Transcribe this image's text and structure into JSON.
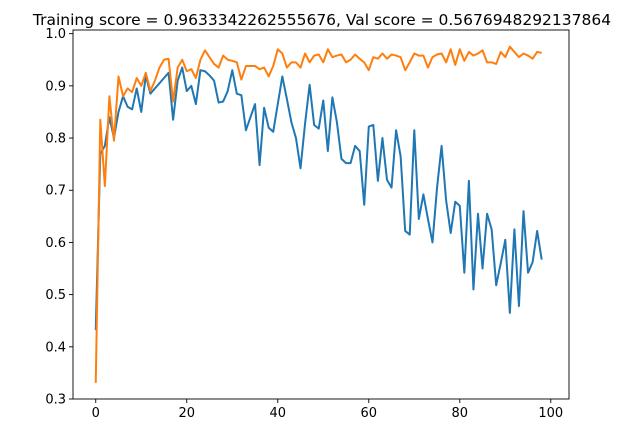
{
  "chart_data": {
    "type": "line",
    "title": "Training score = 0.9633342262555676, Val score = 0.5676948292137864",
    "xlabel": "",
    "ylabel": "",
    "xlim": [
      -5,
      104
    ],
    "ylim": [
      0.3,
      1.007
    ],
    "x_ticks": [
      0,
      20,
      40,
      60,
      80,
      100
    ],
    "y_ticks": [
      0.3,
      0.4,
      0.5,
      0.6,
      0.7,
      0.8,
      0.9,
      1.0
    ],
    "grid": false,
    "x": [
      0,
      1,
      2,
      3,
      4,
      5,
      6,
      7,
      8,
      9,
      10,
      11,
      12,
      13,
      14,
      15,
      16,
      17,
      18,
      19,
      20,
      21,
      22,
      23,
      24,
      25,
      26,
      27,
      28,
      29,
      30,
      31,
      32,
      33,
      34,
      35,
      36,
      37,
      38,
      39,
      40,
      41,
      42,
      43,
      44,
      45,
      46,
      47,
      48,
      49,
      50,
      51,
      52,
      53,
      54,
      55,
      56,
      57,
      58,
      59,
      60,
      61,
      62,
      63,
      64,
      65,
      66,
      67,
      68,
      69,
      70,
      71,
      72,
      73,
      74,
      75,
      76,
      77,
      78,
      79,
      80,
      81,
      82,
      83,
      84,
      85,
      86,
      87,
      88,
      89,
      90,
      91,
      92,
      93,
      94,
      95,
      96,
      97,
      98
    ],
    "series": [
      {
        "color": "#1f77b4",
        "values": [
          0.432,
          0.77,
          0.785,
          0.84,
          0.8,
          0.85,
          0.88,
          0.86,
          0.855,
          0.895,
          0.85,
          0.92,
          0.885,
          0.895,
          0.905,
          0.915,
          0.925,
          0.835,
          0.91,
          0.935,
          0.89,
          0.9,
          0.865,
          0.93,
          0.928,
          0.92,
          0.91,
          0.868,
          0.87,
          0.89,
          0.93,
          0.885,
          0.882,
          0.815,
          0.84,
          0.865,
          0.748,
          0.858,
          0.82,
          0.812,
          0.865,
          0.918,
          0.875,
          0.83,
          0.8,
          0.742,
          0.828,
          0.902,
          0.825,
          0.818,
          0.872,
          0.775,
          0.878,
          0.83,
          0.76,
          0.752,
          0.752,
          0.785,
          0.775,
          0.672,
          0.822,
          0.825,
          0.718,
          0.8,
          0.72,
          0.705,
          0.815,
          0.765,
          0.622,
          0.615,
          0.815,
          0.645,
          0.692,
          0.645,
          0.6,
          0.705,
          0.785,
          0.68,
          0.618,
          0.678,
          0.67,
          0.542,
          0.718,
          0.51,
          0.655,
          0.55,
          0.655,
          0.625,
          0.518,
          0.56,
          0.605,
          0.465,
          0.625,
          0.478,
          0.66,
          0.542,
          0.562,
          0.622,
          0.567
        ]
      },
      {
        "color": "#ff7f0e",
        "values": [
          0.331,
          0.835,
          0.708,
          0.88,
          0.795,
          0.918,
          0.88,
          0.895,
          0.888,
          0.915,
          0.9,
          0.925,
          0.89,
          0.91,
          0.935,
          0.95,
          0.952,
          0.87,
          0.935,
          0.95,
          0.928,
          0.932,
          0.915,
          0.95,
          0.968,
          0.955,
          0.942,
          0.935,
          0.958,
          0.95,
          0.948,
          0.945,
          0.912,
          0.938,
          0.938,
          0.938,
          0.932,
          0.935,
          0.918,
          0.938,
          0.97,
          0.962,
          0.935,
          0.945,
          0.945,
          0.935,
          0.962,
          0.945,
          0.958,
          0.96,
          0.945,
          0.97,
          0.955,
          0.958,
          0.96,
          0.945,
          0.95,
          0.96,
          0.952,
          0.945,
          0.93,
          0.955,
          0.952,
          0.962,
          0.952,
          0.96,
          0.958,
          0.955,
          0.93,
          0.945,
          0.962,
          0.958,
          0.958,
          0.935,
          0.955,
          0.96,
          0.962,
          0.945,
          0.97,
          0.94,
          0.97,
          0.948,
          0.965,
          0.958,
          0.962,
          0.968,
          0.945,
          0.945,
          0.942,
          0.965,
          0.955,
          0.975,
          0.965,
          0.955,
          0.962,
          0.958,
          0.952,
          0.965,
          0.963
        ]
      }
    ]
  }
}
